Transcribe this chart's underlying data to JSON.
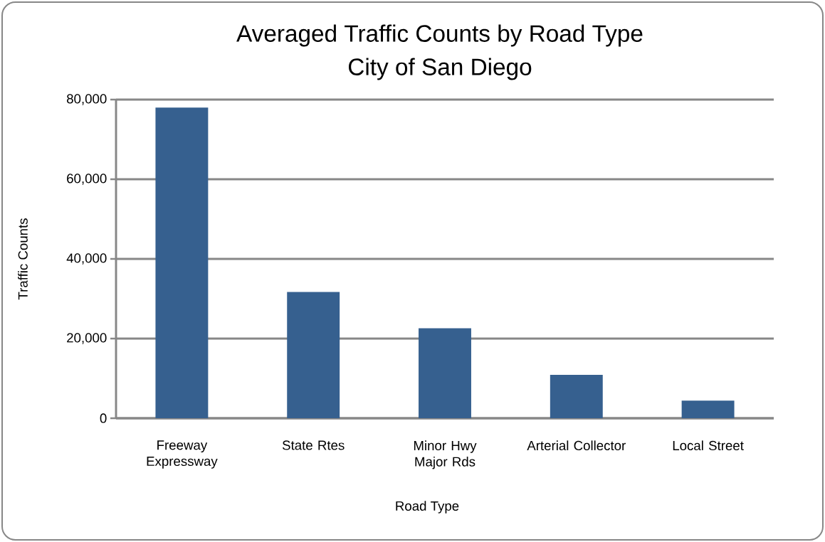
{
  "chart_data": {
    "type": "bar",
    "title": "Averaged Traffic Counts by Road Type",
    "subtitle": "City of San Diego",
    "xlabel": "Road Type",
    "ylabel": "Traffic Counts",
    "categories": [
      "Freeway Expressway",
      "State Rtes",
      "Minor Hwy Major Rds",
      "Arterial Collector",
      "Local Street"
    ],
    "values": [
      78000,
      31700,
      22600,
      10900,
      4400
    ],
    "color": "#36608f",
    "ylim": [
      0,
      80000
    ],
    "yticks": [
      0,
      {
        "value": 20000,
        "label": "20,000"
      },
      {
        "value": 40000,
        "label": "40,000"
      },
      {
        "value": 60000,
        "label": "60,000"
      },
      {
        "value": 80000,
        "label": "80,000"
      }
    ],
    "grid": "y"
  }
}
